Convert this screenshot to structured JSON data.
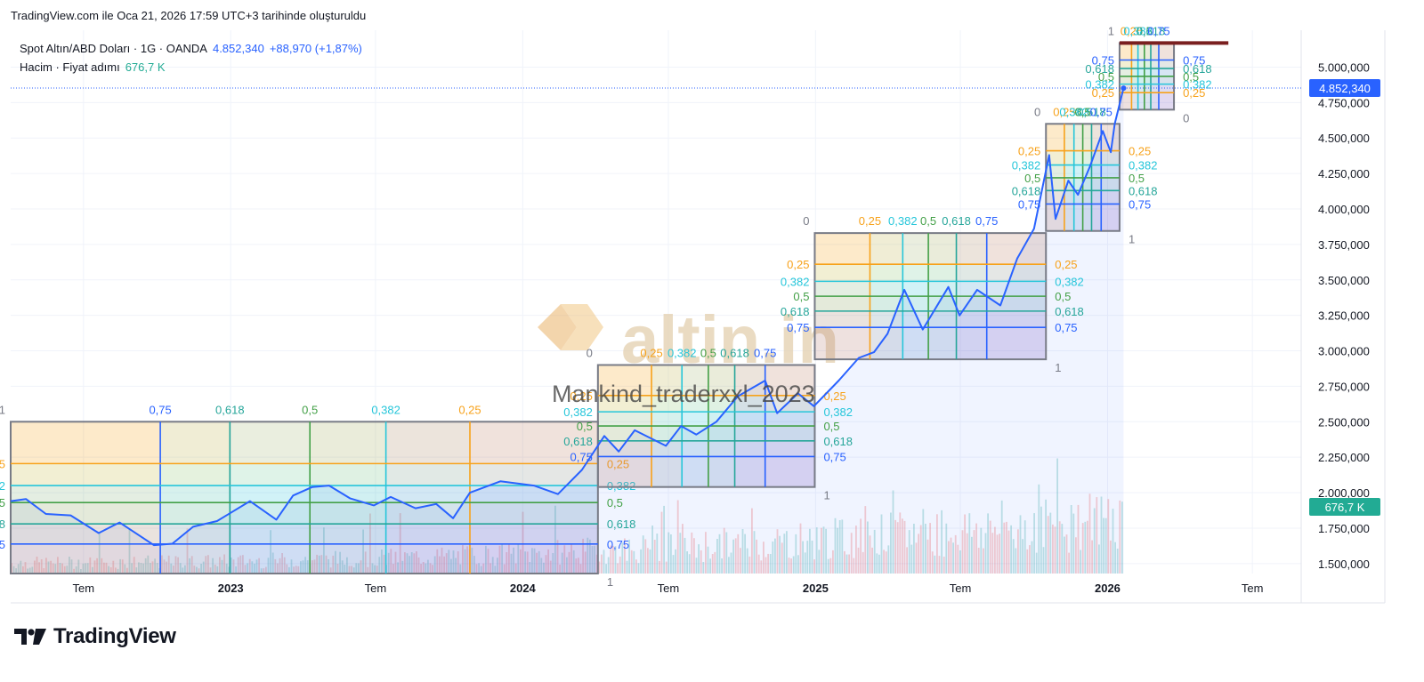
{
  "header": {
    "generated_text": "TradingView.com ile Oca 21, 2026 17:59 UTC+3 tarihinde oluşturuldu"
  },
  "legend": {
    "symbol": "Spot Altın/ABD Doları · 1G · OANDA",
    "price": "4.852,340",
    "change": "+88,970 (+1,87%)",
    "volume_label": "Hacim · Fiyat adımı",
    "volume_value": "676,7 K"
  },
  "watermark": {
    "logo_text": "altin.in",
    "author": "Mankind_traderxxl_2023"
  },
  "footer": {
    "brand": "TradingView"
  },
  "colors": {
    "price_line": "#2962ff",
    "price_badge": "#2962ff",
    "volume_badge": "#22ab94",
    "volume_up": "#26a69a",
    "volume_down": "#ef5350",
    "resistance_line": "#7a1f1f",
    "fib_025": "#f7a21b",
    "fib_0382": "#26c6da",
    "fib_05": "#43a047",
    "fib_0618": "#26a69a",
    "fib_075": "#2962ff",
    "fib_grey": "#787b86"
  },
  "chart_data": {
    "type": "line",
    "symbol": "XAUUSD",
    "x_ticks": [
      "Tem",
      "2023",
      "Tem",
      "2024",
      "Tem",
      "2025",
      "Tem",
      "2026",
      "Tem"
    ],
    "y_ticks": [
      "5.000,000",
      "4.750,000",
      "4.500,000",
      "4.250,000",
      "4.000,000",
      "3.750,000",
      "3.500,000",
      "3.250,000",
      "3.000,000",
      "2.750,000",
      "2.500,000",
      "2.250,000",
      "2.000,000",
      "1.750,000",
      "1.500,000"
    ],
    "y_tick_values": [
      5000,
      4750,
      4500,
      4250,
      4000,
      3750,
      3500,
      3250,
      3000,
      2750,
      2500,
      2250,
      2000,
      1750,
      1500
    ],
    "ylim": [
      1430,
      5260
    ],
    "date_range": [
      "2022-04-01",
      "2026-08-31"
    ],
    "grid": true,
    "current_price_label": "4.852,340",
    "current_price": 4852.34,
    "volume_label": "676,7 K",
    "series": [
      {
        "kind": "close",
        "points": [
          [
            "2022-04-01",
            1940
          ],
          [
            "2022-04-20",
            1955
          ],
          [
            "2022-05-15",
            1850
          ],
          [
            "2022-06-15",
            1840
          ],
          [
            "2022-07-20",
            1715
          ],
          [
            "2022-08-15",
            1790
          ],
          [
            "2022-09-27",
            1630
          ],
          [
            "2022-10-20",
            1640
          ],
          [
            "2022-11-15",
            1760
          ],
          [
            "2022-12-15",
            1800
          ],
          [
            "2023-01-25",
            1940
          ],
          [
            "2023-02-27",
            1810
          ],
          [
            "2023-03-20",
            1980
          ],
          [
            "2023-04-13",
            2040
          ],
          [
            "2023-05-04",
            2050
          ],
          [
            "2023-05-30",
            1960
          ],
          [
            "2023-06-29",
            1910
          ],
          [
            "2023-07-20",
            1970
          ],
          [
            "2023-08-20",
            1890
          ],
          [
            "2023-09-15",
            1920
          ],
          [
            "2023-10-06",
            1820
          ],
          [
            "2023-10-27",
            2000
          ],
          [
            "2023-12-04",
            2080
          ],
          [
            "2024-01-15",
            2050
          ],
          [
            "2024-02-14",
            1990
          ],
          [
            "2024-03-15",
            2160
          ],
          [
            "2024-04-12",
            2400
          ],
          [
            "2024-04-30",
            2290
          ],
          [
            "2024-05-20",
            2440
          ],
          [
            "2024-06-28",
            2330
          ],
          [
            "2024-07-17",
            2470
          ],
          [
            "2024-08-05",
            2410
          ],
          [
            "2024-08-30",
            2500
          ],
          [
            "2024-09-26",
            2680
          ],
          [
            "2024-10-30",
            2790
          ],
          [
            "2024-11-14",
            2560
          ],
          [
            "2024-12-10",
            2700
          ],
          [
            "2024-12-30",
            2610
          ],
          [
            "2025-01-30",
            2790
          ],
          [
            "2025-02-24",
            2950
          ],
          [
            "2025-03-15",
            2990
          ],
          [
            "2025-04-01",
            3120
          ],
          [
            "2025-04-22",
            3430
          ],
          [
            "2025-05-15",
            3150
          ],
          [
            "2025-06-16",
            3450
          ],
          [
            "2025-06-30",
            3250
          ],
          [
            "2025-07-22",
            3430
          ],
          [
            "2025-08-20",
            3320
          ],
          [
            "2025-09-10",
            3650
          ],
          [
            "2025-10-01",
            3860
          ],
          [
            "2025-10-20",
            4380
          ],
          [
            "2025-10-28",
            3930
          ],
          [
            "2025-11-13",
            4200
          ],
          [
            "2025-11-25",
            4100
          ],
          [
            "2025-12-10",
            4300
          ],
          [
            "2025-12-26",
            4550
          ],
          [
            "2026-01-05",
            4400
          ],
          [
            "2026-01-10",
            4600
          ],
          [
            "2026-01-21",
            4852
          ]
        ]
      }
    ],
    "fib_grids": [
      {
        "start": "2022-04-01",
        "end": "2024-04-04",
        "top": 2500,
        "bottom": 1430,
        "top_label": "1",
        "bottom_label": "1",
        "direction": "reverse",
        "time_levels": [
          {
            "value": "0,75",
            "date": "2022-10-05"
          },
          {
            "value": "0,618",
            "date": "2022-12-31"
          },
          {
            "value": "0,5",
            "date": "2023-04-10"
          },
          {
            "value": "0,382",
            "date": "2023-07-14"
          },
          {
            "value": "0,25",
            "date": "2023-10-27"
          }
        ],
        "price_levels": [
          {
            "value": "0,25",
            "price": 2205
          },
          {
            "value": "0,382",
            "price": 2050
          },
          {
            "value": "0,5",
            "price": 1930
          },
          {
            "value": "0,618",
            "price": 1780
          },
          {
            "value": "0,75",
            "price": 1638
          }
        ],
        "right_labels": [
          "0,25",
          "0,382",
          "0,5",
          "0,618",
          "0,75"
        ]
      },
      {
        "start": "2024-04-04",
        "end": "2024-12-31",
        "top": 2900,
        "bottom": 2040,
        "top_label": "0",
        "bottom_label": "1",
        "time_levels": [
          {
            "value": "0,25",
            "date": "2024-06-10"
          },
          {
            "value": "0,382",
            "date": "2024-07-18"
          },
          {
            "value": "0,5",
            "date": "2024-08-20"
          },
          {
            "value": "0,618",
            "date": "2024-09-22"
          },
          {
            "value": "0,75",
            "date": "2024-10-30"
          }
        ],
        "price_levels": [
          {
            "value": "0,25",
            "price": 2685
          },
          {
            "value": "0,382",
            "price": 2570
          },
          {
            "value": "0,5",
            "price": 2470
          },
          {
            "value": "0,618",
            "price": 2365
          },
          {
            "value": "0,75",
            "price": 2255
          }
        ]
      },
      {
        "start": "2024-12-31",
        "end": "2025-10-16",
        "top": 3830,
        "bottom": 2940,
        "top_label": "0",
        "bottom_label": "1",
        "time_levels": [
          {
            "value": "0,25",
            "date": "2025-03-10"
          },
          {
            "value": "0,382",
            "date": "2025-04-20"
          },
          {
            "value": "0,5",
            "date": "2025-05-22"
          },
          {
            "value": "0,618",
            "date": "2025-06-26"
          },
          {
            "value": "0,75",
            "date": "2025-08-03"
          }
        ],
        "price_levels": [
          {
            "value": "0,25",
            "price": 3610
          },
          {
            "value": "0,382",
            "price": 3490
          },
          {
            "value": "0,5",
            "price": 3385
          },
          {
            "value": "0,618",
            "price": 3280
          },
          {
            "value": "0,75",
            "price": 3165
          }
        ]
      },
      {
        "start": "2025-10-16",
        "end": "2026-01-16",
        "top": 4600,
        "bottom": 3845,
        "top_label": "0",
        "bottom_label": "1",
        "time_levels": [
          {
            "value": "0,25",
            "date": "2025-11-08"
          },
          {
            "value": "0,382",
            "date": "2025-11-20"
          },
          {
            "value": "0,5",
            "date": "2025-12-01"
          },
          {
            "value": "0,618",
            "date": "2025-12-12"
          },
          {
            "value": "0,75",
            "date": "2025-12-24"
          }
        ],
        "price_levels": [
          {
            "value": "0,25",
            "price": 4410
          },
          {
            "value": "0,382",
            "price": 4310
          },
          {
            "value": "0,5",
            "price": 4220
          },
          {
            "value": "0,618",
            "price": 4130
          },
          {
            "value": "0,75",
            "price": 4035
          }
        ]
      },
      {
        "start": "2026-01-16",
        "end": "2026-03-25",
        "top": 5170,
        "bottom": 4700,
        "top_label": "1",
        "bottom_label": "0",
        "direction": "reverse",
        "time_levels": [
          {
            "value": "0,25",
            "date": "2026-01-31"
          },
          {
            "value": "0,382",
            "date": "2026-02-08"
          },
          {
            "value": "0,5",
            "date": "2026-02-16"
          },
          {
            "value": "0,618",
            "date": "2026-02-24"
          },
          {
            "value": "0,75",
            "date": "2026-03-06"
          }
        ],
        "price_levels": [
          {
            "value": "0,75",
            "price": 5050
          },
          {
            "value": "0,618",
            "price": 4990
          },
          {
            "value": "0,5",
            "price": 4935
          },
          {
            "value": "0,382",
            "price": 4880
          },
          {
            "value": "0,25",
            "price": 4820
          }
        ]
      }
    ],
    "resistance": {
      "start": "2026-01-16",
      "end": "2026-06-01",
      "price": 5170
    }
  }
}
